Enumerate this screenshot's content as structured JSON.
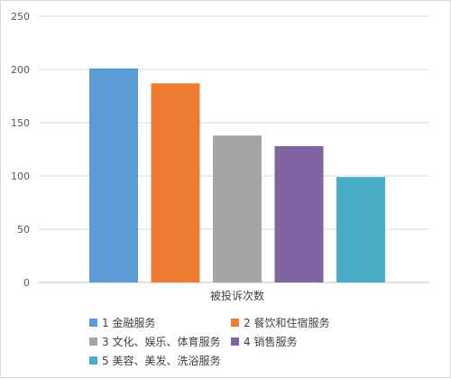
{
  "chart_data": {
    "type": "bar",
    "xlabel": "被投诉次数",
    "ylabel": "",
    "ylim": [
      0,
      250
    ],
    "yticks": [
      0,
      50,
      100,
      150,
      200,
      250
    ],
    "grid": true,
    "legend_position": "bottom",
    "series": [
      {
        "name": "1 金融服务",
        "value": 201,
        "color": "#5b9bd5"
      },
      {
        "name": "2 餐饮和住宿服务",
        "value": 187,
        "color": "#ed7d31"
      },
      {
        "name": "3 文化、娱乐、体育服务",
        "value": 138,
        "color": "#a5a5a5"
      },
      {
        "name": "4 销售服务",
        "value": 128,
        "color": "#8064a2"
      },
      {
        "name": "5 美容、美发、洗浴服务",
        "value": 99,
        "color": "#4bacc6"
      }
    ]
  }
}
